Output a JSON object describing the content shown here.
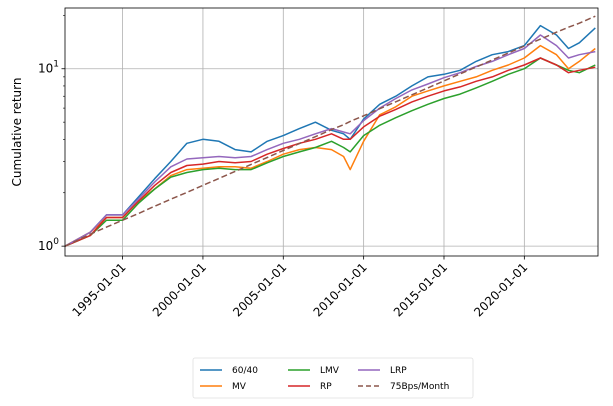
{
  "chart_data": {
    "type": "line",
    "title": "",
    "xlabel": "",
    "ylabel": "Cumulative return",
    "yscale": "log",
    "ylim": [
      0.88,
      22
    ],
    "xlim": [
      "1991-06-01",
      "2024-08-01"
    ],
    "grid": true,
    "legend_position": "bottom-center",
    "legend_columns": 3,
    "x_ticks": [
      "1995-01-01",
      "2000-01-01",
      "2005-01-01",
      "2010-01-01",
      "2015-01-01",
      "2020-01-01"
    ],
    "y_ticks": [
      {
        "value": 1,
        "label": "10^0"
      },
      {
        "value": 10,
        "label": "10^1"
      }
    ],
    "x": [
      "1991-06-01",
      "1993-01-01",
      "1994-01-01",
      "1995-01-01",
      "1996-01-01",
      "1997-01-01",
      "1998-01-01",
      "1999-01-01",
      "2000-01-01",
      "2001-01-01",
      "2002-01-01",
      "2003-01-01",
      "2004-01-01",
      "2005-01-01",
      "2006-01-01",
      "2007-01-01",
      "2008-01-01",
      "2008-10-01",
      "2009-03-01",
      "2010-01-01",
      "2011-01-01",
      "2012-01-01",
      "2013-01-01",
      "2014-01-01",
      "2015-01-01",
      "2016-01-01",
      "2017-01-01",
      "2018-01-01",
      "2019-01-01",
      "2020-01-01",
      "2021-01-01",
      "2022-01-01",
      "2022-10-01",
      "2023-06-01",
      "2024-06-01"
    ],
    "series": [
      {
        "name": "60/40",
        "color": "#1f77b4",
        "style": "solid",
        "values": [
          1.0,
          1.2,
          1.5,
          1.5,
          1.9,
          2.4,
          3.0,
          3.8,
          4.0,
          3.9,
          3.5,
          3.4,
          3.9,
          4.2,
          4.6,
          5.0,
          4.5,
          4.3,
          4.0,
          5.2,
          6.3,
          7.0,
          8.0,
          9.0,
          9.3,
          9.8,
          11.0,
          12.0,
          12.5,
          13.5,
          17.5,
          15.5,
          13.0,
          14.0,
          17.0
        ]
      },
      {
        "name": "MV",
        "color": "#ff7f0e",
        "style": "solid",
        "values": [
          1.0,
          1.2,
          1.45,
          1.45,
          1.8,
          2.1,
          2.5,
          2.7,
          2.75,
          2.8,
          2.8,
          2.75,
          3.0,
          3.3,
          3.5,
          3.6,
          3.5,
          3.2,
          2.7,
          3.9,
          5.5,
          6.1,
          7.0,
          7.5,
          8.0,
          8.5,
          9.0,
          9.8,
          10.5,
          11.5,
          13.5,
          12.0,
          10.0,
          11.0,
          13.0
        ]
      },
      {
        "name": "LMV",
        "color": "#2ca02c",
        "style": "solid",
        "values": [
          1.0,
          1.15,
          1.4,
          1.4,
          1.75,
          2.1,
          2.45,
          2.6,
          2.7,
          2.75,
          2.7,
          2.7,
          2.95,
          3.2,
          3.4,
          3.6,
          3.9,
          3.6,
          3.4,
          4.2,
          4.8,
          5.3,
          5.8,
          6.3,
          6.8,
          7.2,
          7.8,
          8.5,
          9.3,
          10.0,
          11.5,
          10.5,
          9.8,
          9.5,
          10.5
        ]
      },
      {
        "name": "RP",
        "color": "#d62728",
        "style": "solid",
        "values": [
          1.0,
          1.15,
          1.45,
          1.45,
          1.8,
          2.2,
          2.6,
          2.85,
          2.9,
          3.0,
          2.95,
          3.0,
          3.3,
          3.55,
          3.8,
          4.0,
          4.3,
          4.0,
          4.0,
          4.7,
          5.4,
          5.9,
          6.5,
          7.0,
          7.5,
          7.9,
          8.5,
          9.0,
          9.8,
          10.5,
          11.5,
          10.5,
          9.5,
          9.8,
          10.2
        ]
      },
      {
        "name": "LRP",
        "color": "#9467bd",
        "style": "solid",
        "values": [
          1.0,
          1.2,
          1.5,
          1.5,
          1.85,
          2.3,
          2.8,
          3.1,
          3.15,
          3.2,
          3.15,
          3.2,
          3.5,
          3.8,
          4.0,
          4.3,
          4.6,
          4.4,
          4.3,
          5.1,
          6.0,
          6.8,
          7.6,
          8.2,
          8.9,
          9.5,
          10.3,
          11.0,
          12.0,
          13.0,
          15.5,
          13.5,
          11.5,
          12.0,
          12.5
        ]
      },
      {
        "name": "75Bps/Month",
        "color": "#8c564b",
        "style": "dashed",
        "values": [
          1.0,
          1.17,
          1.28,
          1.4,
          1.53,
          1.68,
          1.84,
          2.01,
          2.2,
          2.41,
          2.64,
          2.89,
          3.16,
          3.46,
          3.79,
          4.14,
          4.54,
          4.84,
          5.05,
          5.43,
          5.95,
          6.51,
          7.13,
          7.8,
          8.54,
          9.35,
          10.23,
          11.2,
          12.26,
          13.42,
          14.69,
          16.08,
          17.15,
          18.06,
          19.77
        ]
      }
    ]
  }
}
